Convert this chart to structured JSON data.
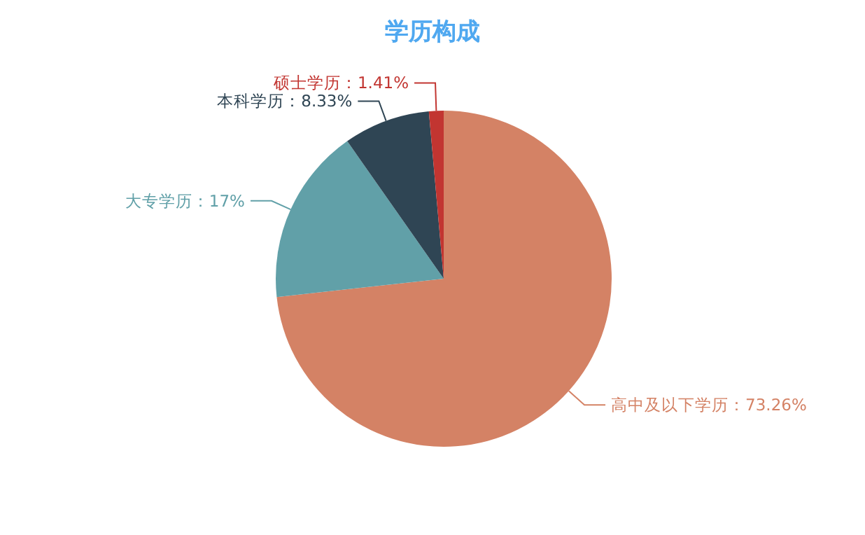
{
  "chart_data": {
    "type": "pie",
    "title": "学历构成",
    "categories": [
      "高中及以下学历",
      "大专学历",
      "本科学历",
      "硕士学历"
    ],
    "values": [
      73.26,
      17,
      8.33,
      1.41
    ],
    "colors": [
      "#d48265",
      "#61a0a8",
      "#2f4554",
      "#c23531"
    ],
    "value_labels": [
      "73.26%",
      "17%",
      "8.33%",
      "1.41%"
    ]
  }
}
